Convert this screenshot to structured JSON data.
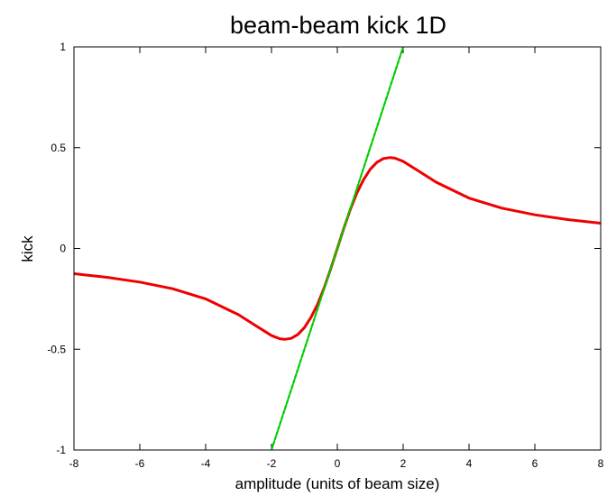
{
  "chart_data": {
    "type": "line",
    "title": "beam-beam kick 1D",
    "xlabel": "amplitude (units of beam size)",
    "ylabel": "kick",
    "xlim": [
      -8,
      8
    ],
    "ylim": [
      -1,
      1
    ],
    "x_ticks": [
      -8,
      -6,
      -4,
      -2,
      0,
      2,
      4,
      6,
      8
    ],
    "x_tick_labels": [
      "-8",
      "-6",
      "-4",
      "-2",
      "0",
      "2",
      "4",
      "6",
      "8"
    ],
    "y_ticks": [
      -1,
      -0.5,
      0,
      0.5,
      1
    ],
    "y_tick_labels": [
      "-1",
      "-0.5",
      "0",
      "0.5",
      "1"
    ],
    "grid": false,
    "legend": "none",
    "series": [
      {
        "color": "#ee0000",
        "style": "solid",
        "x": [
          -8,
          -7,
          -6,
          -5,
          -4,
          -3,
          -2.5,
          -2,
          -1.75,
          -1.6,
          -1.4,
          -1.2,
          -1,
          -0.8,
          -0.6,
          -0.4,
          -0.2,
          0,
          0.2,
          0.4,
          0.6,
          0.8,
          1,
          1.2,
          1.4,
          1.6,
          1.75,
          2,
          2.5,
          3,
          4,
          5,
          6,
          7,
          8
        ],
        "values": [
          -0.125,
          -0.143,
          -0.167,
          -0.2,
          -0.25,
          -0.329,
          -0.381,
          -0.432,
          -0.448,
          -0.451,
          -0.446,
          -0.427,
          -0.393,
          -0.342,
          -0.277,
          -0.196,
          -0.101,
          0,
          0.101,
          0.196,
          0.277,
          0.342,
          0.393,
          0.427,
          0.446,
          0.451,
          0.448,
          0.432,
          0.381,
          0.329,
          0.25,
          0.2,
          0.167,
          0.143,
          0.125
        ]
      },
      {
        "color": "#00cc00",
        "style": "dashed",
        "x": [
          -2,
          2
        ],
        "values": [
          -1,
          1
        ]
      }
    ]
  }
}
